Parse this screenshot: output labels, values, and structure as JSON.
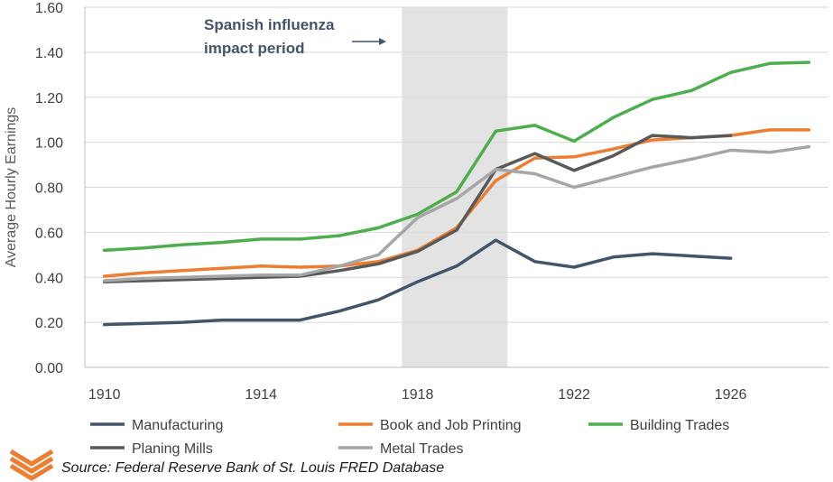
{
  "chart_data": {
    "type": "line",
    "ylabel": "Average Hourly Earnings",
    "xlabel": "",
    "xlim": [
      1909.5,
      1928.5
    ],
    "ylim": [
      0,
      1.6
    ],
    "x_ticks": [
      1910,
      1914,
      1918,
      1922,
      1926
    ],
    "y_ticks": [
      "0.00",
      "0.20",
      "0.40",
      "0.60",
      "0.80",
      "1.00",
      "1.20",
      "1.40",
      "1.60"
    ],
    "grid": "horizontal",
    "legend_position": "bottom",
    "shaded_region": {
      "from": 1917.6,
      "to": 1920.3,
      "color": "#d9d9d9"
    },
    "annotation": {
      "lines": [
        "Spanish influenza",
        "impact period"
      ],
      "arrow": "right"
    },
    "series": [
      {
        "name": "Manufacturing",
        "color": "#44546a",
        "x": [
          1910,
          1911,
          1912,
          1913,
          1914,
          1915,
          1916,
          1917,
          1918,
          1919,
          1920,
          1921,
          1922,
          1923,
          1924,
          1925,
          1926
        ],
        "values": [
          0.19,
          0.195,
          0.2,
          0.21,
          0.21,
          0.21,
          0.25,
          0.3,
          0.38,
          0.45,
          0.565,
          0.47,
          0.445,
          0.49,
          0.505,
          0.495,
          0.485
        ]
      },
      {
        "name": "Book and Job Printing",
        "color": "#ed7d31",
        "x": [
          1910,
          1911,
          1912,
          1913,
          1914,
          1915,
          1916,
          1917,
          1918,
          1919,
          1920,
          1921,
          1922,
          1923,
          1924,
          1925,
          1926,
          1927,
          1928
        ],
        "values": [
          0.405,
          0.42,
          0.43,
          0.44,
          0.45,
          0.445,
          0.45,
          0.47,
          0.52,
          0.62,
          0.83,
          0.93,
          0.935,
          0.97,
          1.01,
          1.02,
          1.03,
          1.055,
          1.055
        ]
      },
      {
        "name": "Building Trades",
        "color": "#4cae4c",
        "x": [
          1910,
          1911,
          1912,
          1913,
          1914,
          1915,
          1916,
          1917,
          1918,
          1919,
          1920,
          1921,
          1922,
          1923,
          1924,
          1925,
          1926,
          1927,
          1928
        ],
        "values": [
          0.52,
          0.53,
          0.545,
          0.555,
          0.57,
          0.57,
          0.585,
          0.62,
          0.68,
          0.78,
          1.05,
          1.075,
          1.005,
          1.11,
          1.19,
          1.23,
          1.31,
          1.35,
          1.355
        ]
      },
      {
        "name": "Planing Mills",
        "color": "#595959",
        "x": [
          1910,
          1911,
          1912,
          1913,
          1914,
          1915,
          1916,
          1917,
          1918,
          1919,
          1920,
          1921,
          1922,
          1923,
          1924,
          1925,
          1926
        ],
        "values": [
          0.38,
          0.385,
          0.39,
          0.395,
          0.4,
          0.405,
          0.43,
          0.46,
          0.515,
          0.61,
          0.88,
          0.95,
          0.875,
          0.94,
          1.03,
          1.02,
          1.03
        ]
      },
      {
        "name": "Metal Trades",
        "color": "#a6a6a6",
        "x": [
          1910,
          1911,
          1912,
          1913,
          1914,
          1915,
          1916,
          1917,
          1918,
          1919,
          1920,
          1921,
          1922,
          1923,
          1924,
          1925,
          1926,
          1927,
          1928
        ],
        "values": [
          0.385,
          0.395,
          0.4,
          0.405,
          0.41,
          0.41,
          0.45,
          0.5,
          0.665,
          0.75,
          0.88,
          0.86,
          0.8,
          0.845,
          0.89,
          0.925,
          0.965,
          0.955,
          0.98
        ]
      }
    ]
  },
  "source_text": "Source: Federal Reserve Bank of St. Louis FRED Database",
  "logo_icon": "chevron-stack-logo",
  "logo_color": "#ed7d31"
}
